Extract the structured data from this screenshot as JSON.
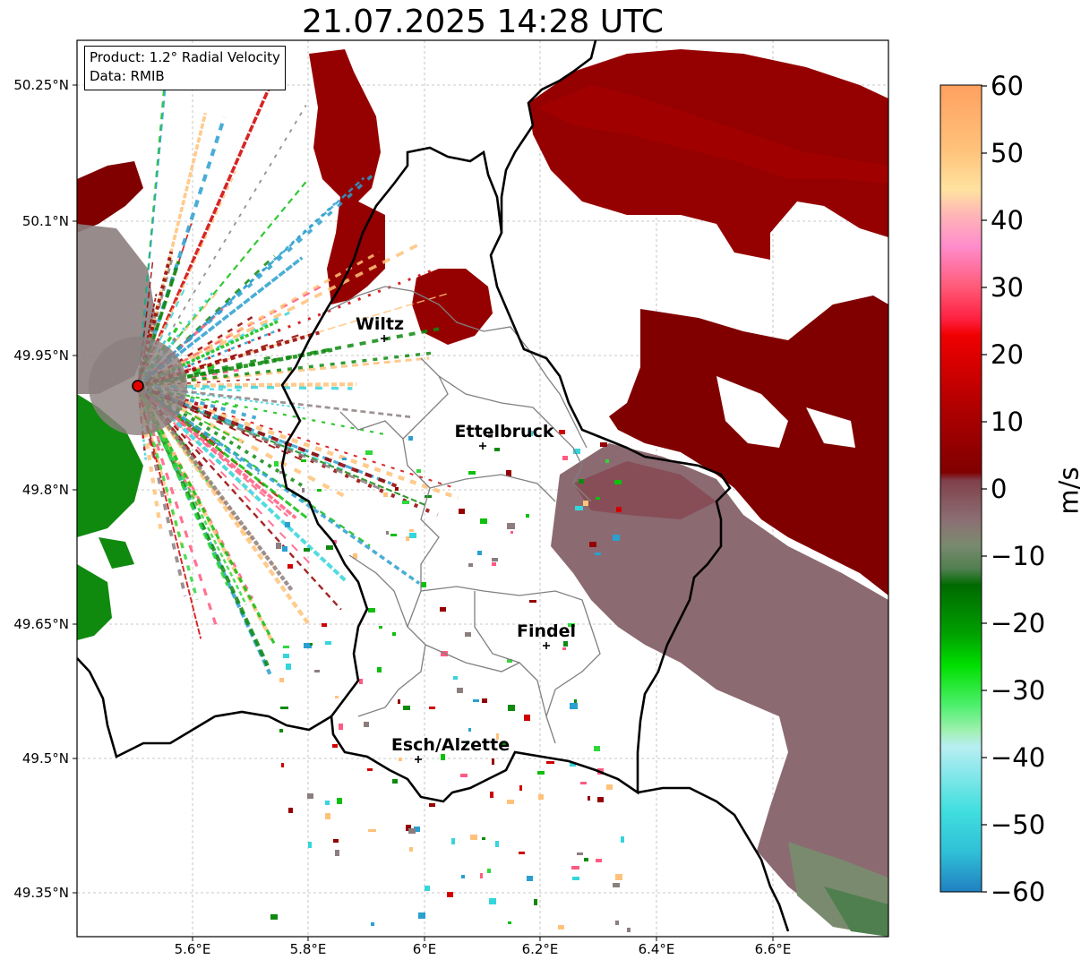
{
  "title": "21.07.2025 14:28 UTC",
  "info": {
    "product": "Product: 1.2° Radial Velocity",
    "data": "Data: RMIB"
  },
  "lat_ticks": [
    "50.25°N",
    "50.1°N",
    "49.95°N",
    "49.8°N",
    "49.65°N",
    "49.5°N",
    "49.35°N"
  ],
  "lon_ticks": [
    "5.6°E",
    "5.8°E",
    "6°E",
    "6.2°E",
    "6.4°E",
    "6.6°E"
  ],
  "colorbar": {
    "unit": "m/s",
    "ticks": [
      "60",
      "50",
      "40",
      "30",
      "20",
      "10",
      "0",
      "−10",
      "−20",
      "−30",
      "−40",
      "−50",
      "−60"
    ],
    "range": [
      -60,
      60
    ]
  },
  "cities": [
    {
      "name": "Wiltz",
      "icon": "plus-marker-icon"
    },
    {
      "name": "Ettelbruck",
      "icon": "plus-marker-icon"
    },
    {
      "name": "Findel",
      "icon": "plus-marker-icon"
    },
    {
      "name": "Esch/Alzette",
      "icon": "plus-marker-icon"
    }
  ],
  "radar_marker": {
    "icon": "radar-site-icon",
    "color": "#e00000"
  },
  "colors": {
    "dark_red": "#950000",
    "muted_mauve": "#8c6a72",
    "green": "#0f8a0f",
    "cyan": "#35d5dc"
  }
}
